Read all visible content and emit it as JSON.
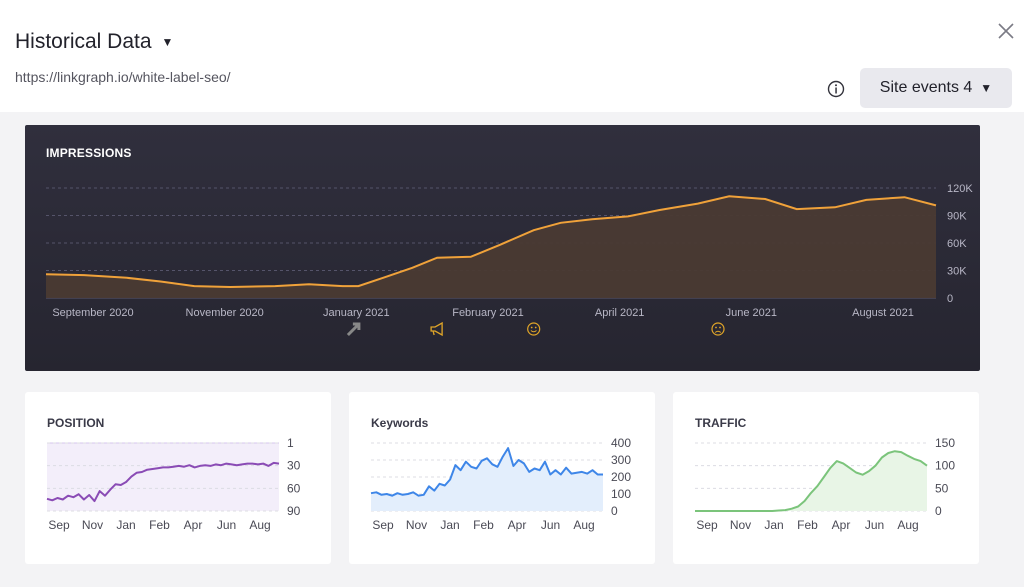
{
  "header": {
    "title": "Historical Data",
    "url": "https://linkgraph.io/white-label-seo/",
    "site_events_label": "Site events 4"
  },
  "icons": {
    "title_dropdown": "caret-down-icon",
    "close": "close-icon",
    "info": "info-icon",
    "site_events_dropdown": "caret-down-icon",
    "event_markers": [
      "arrow-up-right-icon",
      "megaphone-icon",
      "smile-icon",
      "frown-icon"
    ]
  },
  "colors": {
    "impressions_line": "#f0a23a",
    "position_line": "#8a4bb5",
    "keywords_line": "#3e86e8",
    "traffic_line": "#7bc47b",
    "marker_gold": "#e0a528",
    "marker_gray": "#888888"
  },
  "chart_data": [
    {
      "type": "area",
      "title": "IMPRESSIONS",
      "x_ticks": [
        "September 2020",
        "November 2020",
        "January 2021",
        "February 2021",
        "April 2021",
        "June 2021",
        "August 2021"
      ],
      "y_ticks": [
        "120K",
        "90K",
        "60K",
        "30K",
        "0"
      ],
      "ylim": [
        0,
        120000
      ],
      "x_range": [
        "2020-08-15",
        "2021-09-15"
      ],
      "series": [
        {
          "x": [
            "2020-08-15",
            "2020-09-01",
            "2020-09-20",
            "2020-10-05",
            "2020-10-20",
            "2020-11-05",
            "2020-11-25",
            "2020-12-10",
            "2020-12-25",
            "2021-01-01",
            "2021-01-12",
            "2021-01-25",
            "2021-02-05",
            "2021-02-20",
            "2021-03-05",
            "2021-03-20",
            "2021-04-01",
            "2021-04-15",
            "2021-05-01",
            "2021-05-15",
            "2021-06-01",
            "2021-06-15",
            "2021-07-01",
            "2021-07-15",
            "2021-08-01",
            "2021-08-15",
            "2021-09-01",
            "2021-09-15"
          ],
          "values": [
            26000,
            25000,
            22000,
            18000,
            13000,
            12000,
            13000,
            15000,
            13000,
            13000,
            22000,
            33000,
            44000,
            45000,
            58000,
            74000,
            82000,
            86000,
            89000,
            96000,
            103000,
            111000,
            108000,
            97000,
            99000,
            107000,
            110000,
            101000
          ]
        }
      ],
      "event_markers_x": [
        "2020-12-30",
        "2021-02-05",
        "2021-03-20",
        "2021-06-10"
      ]
    },
    {
      "type": "line",
      "title": "POSITION",
      "x_ticks": [
        "Sep",
        "Nov",
        "Jan",
        "Feb",
        "Apr",
        "Jun",
        "Aug"
      ],
      "y_ticks": [
        "1",
        "30",
        "60",
        "90"
      ],
      "ylim": [
        90,
        1
      ],
      "series": [
        {
          "values": [
            74,
            76,
            73,
            75,
            70,
            72,
            68,
            75,
            69,
            77,
            64,
            70,
            62,
            55,
            56,
            52,
            45,
            40,
            39,
            36,
            35,
            34,
            33,
            33,
            32,
            31,
            32,
            30,
            33,
            31,
            30,
            31,
            29,
            30,
            28,
            29,
            30,
            29,
            28,
            28,
            29,
            28,
            31,
            27,
            28
          ]
        }
      ]
    },
    {
      "type": "area",
      "title": "Keywords",
      "x_ticks": [
        "Sep",
        "Nov",
        "Jan",
        "Feb",
        "Apr",
        "Jun",
        "Aug"
      ],
      "y_ticks": [
        "400",
        "300",
        "200",
        "100",
        "0"
      ],
      "ylim": [
        0,
        400
      ],
      "series": [
        {
          "values": [
            105,
            110,
            95,
            100,
            90,
            105,
            95,
            100,
            110,
            90,
            95,
            145,
            120,
            160,
            150,
            185,
            270,
            240,
            290,
            260,
            250,
            295,
            310,
            275,
            260,
            320,
            370,
            265,
            300,
            280,
            230,
            250,
            240,
            290,
            215,
            240,
            215,
            255,
            220,
            225,
            230,
            220,
            240,
            215,
            215
          ]
        }
      ]
    },
    {
      "type": "area",
      "title": "TRAFFIC",
      "x_ticks": [
        "Sep",
        "Nov",
        "Jan",
        "Feb",
        "Apr",
        "Jun",
        "Aug"
      ],
      "y_ticks": [
        "150",
        "100",
        "50",
        "0"
      ],
      "ylim": [
        0,
        150
      ],
      "series": [
        {
          "values": [
            0,
            0,
            0,
            0,
            0,
            0,
            0,
            0,
            0,
            0,
            0,
            0,
            0,
            1,
            2,
            5,
            10,
            22,
            40,
            55,
            75,
            95,
            110,
            105,
            95,
            85,
            80,
            88,
            100,
            118,
            128,
            132,
            130,
            122,
            115,
            110,
            100
          ]
        }
      ]
    }
  ]
}
